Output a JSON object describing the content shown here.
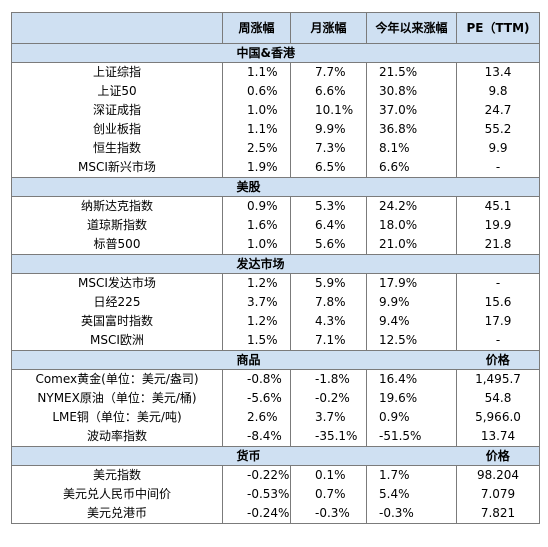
{
  "header": {
    "c0": "",
    "weekly": "周涨幅",
    "monthly": "月涨幅",
    "ytd": "今年以来涨幅",
    "pe": "PE（TTM)"
  },
  "sections": [
    {
      "title": "中国&香港",
      "right_title": "",
      "rows": [
        {
          "name": "上证综指",
          "w": "1.1%",
          "m": "7.7%",
          "y": "21.5%",
          "p": "13.4"
        },
        {
          "name": "上证50",
          "w": "0.6%",
          "m": "6.6%",
          "y": "30.8%",
          "p": "9.8"
        },
        {
          "name": "深证成指",
          "w": "1.0%",
          "m": "10.1%",
          "y": "37.0%",
          "p": "24.7"
        },
        {
          "name": "创业板指",
          "w": "1.1%",
          "m": "9.9%",
          "y": "36.8%",
          "p": "55.2"
        },
        {
          "name": "恒生指数",
          "w": "2.5%",
          "m": "7.3%",
          "y": "8.1%",
          "p": "9.9"
        },
        {
          "name": "MSCI新兴市场",
          "w": "1.9%",
          "m": "6.5%",
          "y": "6.6%",
          "p": "-"
        }
      ]
    },
    {
      "title": "美股",
      "right_title": "",
      "rows": [
        {
          "name": "纳斯达克指数",
          "w": "0.9%",
          "m": "5.3%",
          "y": "24.2%",
          "p": "45.1"
        },
        {
          "name": "道琼斯指数",
          "w": "1.6%",
          "m": "6.4%",
          "y": "18.0%",
          "p": "19.9"
        },
        {
          "name": "标普500",
          "w": "1.0%",
          "m": "5.6%",
          "y": "21.0%",
          "p": "21.8"
        }
      ]
    },
    {
      "title": "发达市场",
      "right_title": "",
      "rows": [
        {
          "name": "MSCI发达市场",
          "w": "1.2%",
          "m": "5.9%",
          "y": "17.9%",
          "p": "-"
        },
        {
          "name": "日经225",
          "w": "3.7%",
          "m": "7.8%",
          "y": "9.9%",
          "p": "15.6"
        },
        {
          "name": "英国富时指数",
          "w": "1.2%",
          "m": "4.3%",
          "y": "9.4%",
          "p": "17.9"
        },
        {
          "name": "MSCI欧洲",
          "w": "1.5%",
          "m": "7.1%",
          "y": "12.5%",
          "p": "-"
        }
      ]
    },
    {
      "title": "商品",
      "right_title": "价格",
      "rows": [
        {
          "name": "Comex黄金(单位：美元/盎司)",
          "w": "-0.8%",
          "m": "-1.8%",
          "y": "16.4%",
          "p": "1,495.7"
        },
        {
          "name": "NYMEX原油（单位：美元/桶)",
          "w": "-5.6%",
          "m": "-0.2%",
          "y": "19.6%",
          "p": "54.8"
        },
        {
          "name": "LME铜（单位：美元/吨)",
          "w": "2.6%",
          "m": "3.7%",
          "y": "0.9%",
          "p": "5,966.0"
        },
        {
          "name": "波动率指数",
          "w": "-8.4%",
          "m": "-35.1%",
          "y": "-51.5%",
          "p": "13.74"
        }
      ]
    },
    {
      "title": "货币",
      "right_title": "价格",
      "rows": [
        {
          "name": "美元指数",
          "w": "-0.22%",
          "m": "0.1%",
          "y": "1.7%",
          "p": "98.204"
        },
        {
          "name": "美元兑人民币中间价",
          "w": "-0.53%",
          "m": "0.7%",
          "y": "5.4%",
          "p": "7.079"
        },
        {
          "name": "美元兑港币",
          "w": "-0.24%",
          "m": "-0.3%",
          "y": "-0.3%",
          "p": "7.821"
        }
      ]
    }
  ]
}
